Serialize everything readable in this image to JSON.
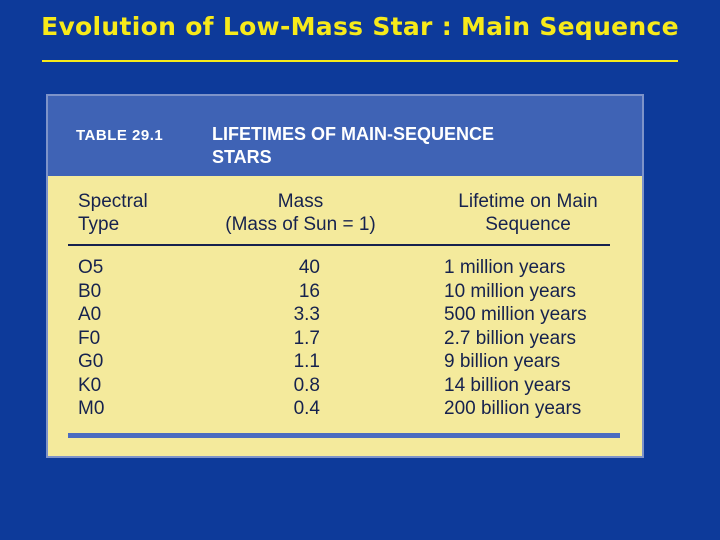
{
  "slide": {
    "title": "Evolution of Low-Mass Star : Main Sequence"
  },
  "table": {
    "number": "TABLE 29.1",
    "caption_line1": "LIFETIMES OF MAIN-SEQUENCE",
    "caption_line2": "STARS",
    "headers": {
      "type_line1": "Spectral",
      "type_line2": "Type",
      "mass_line1": "Mass",
      "mass_line2": "(Mass of Sun = 1)",
      "life_line1": "Lifetime on Main",
      "life_line2": "Sequence"
    },
    "rows": [
      {
        "type": "O5",
        "mass": "40",
        "lifetime": "1 million years"
      },
      {
        "type": "B0",
        "mass": "16",
        "lifetime": "10 million years"
      },
      {
        "type": "A0",
        "mass": "3.3",
        "lifetime": "500 million years"
      },
      {
        "type": "F0",
        "mass": "1.7",
        "lifetime": "2.7 billion years"
      },
      {
        "type": "G0",
        "mass": "1.1",
        "lifetime": "9 billion years"
      },
      {
        "type": "K0",
        "mass": "0.8",
        "lifetime": "14 billion years"
      },
      {
        "type": "M0",
        "mass": "0.4",
        "lifetime": "200 billion years"
      }
    ]
  },
  "colors": {
    "background": "#0d3a9a",
    "title": "#f7ea1a",
    "table_header": "#3f63b5",
    "table_body": "#f4ea9c"
  }
}
